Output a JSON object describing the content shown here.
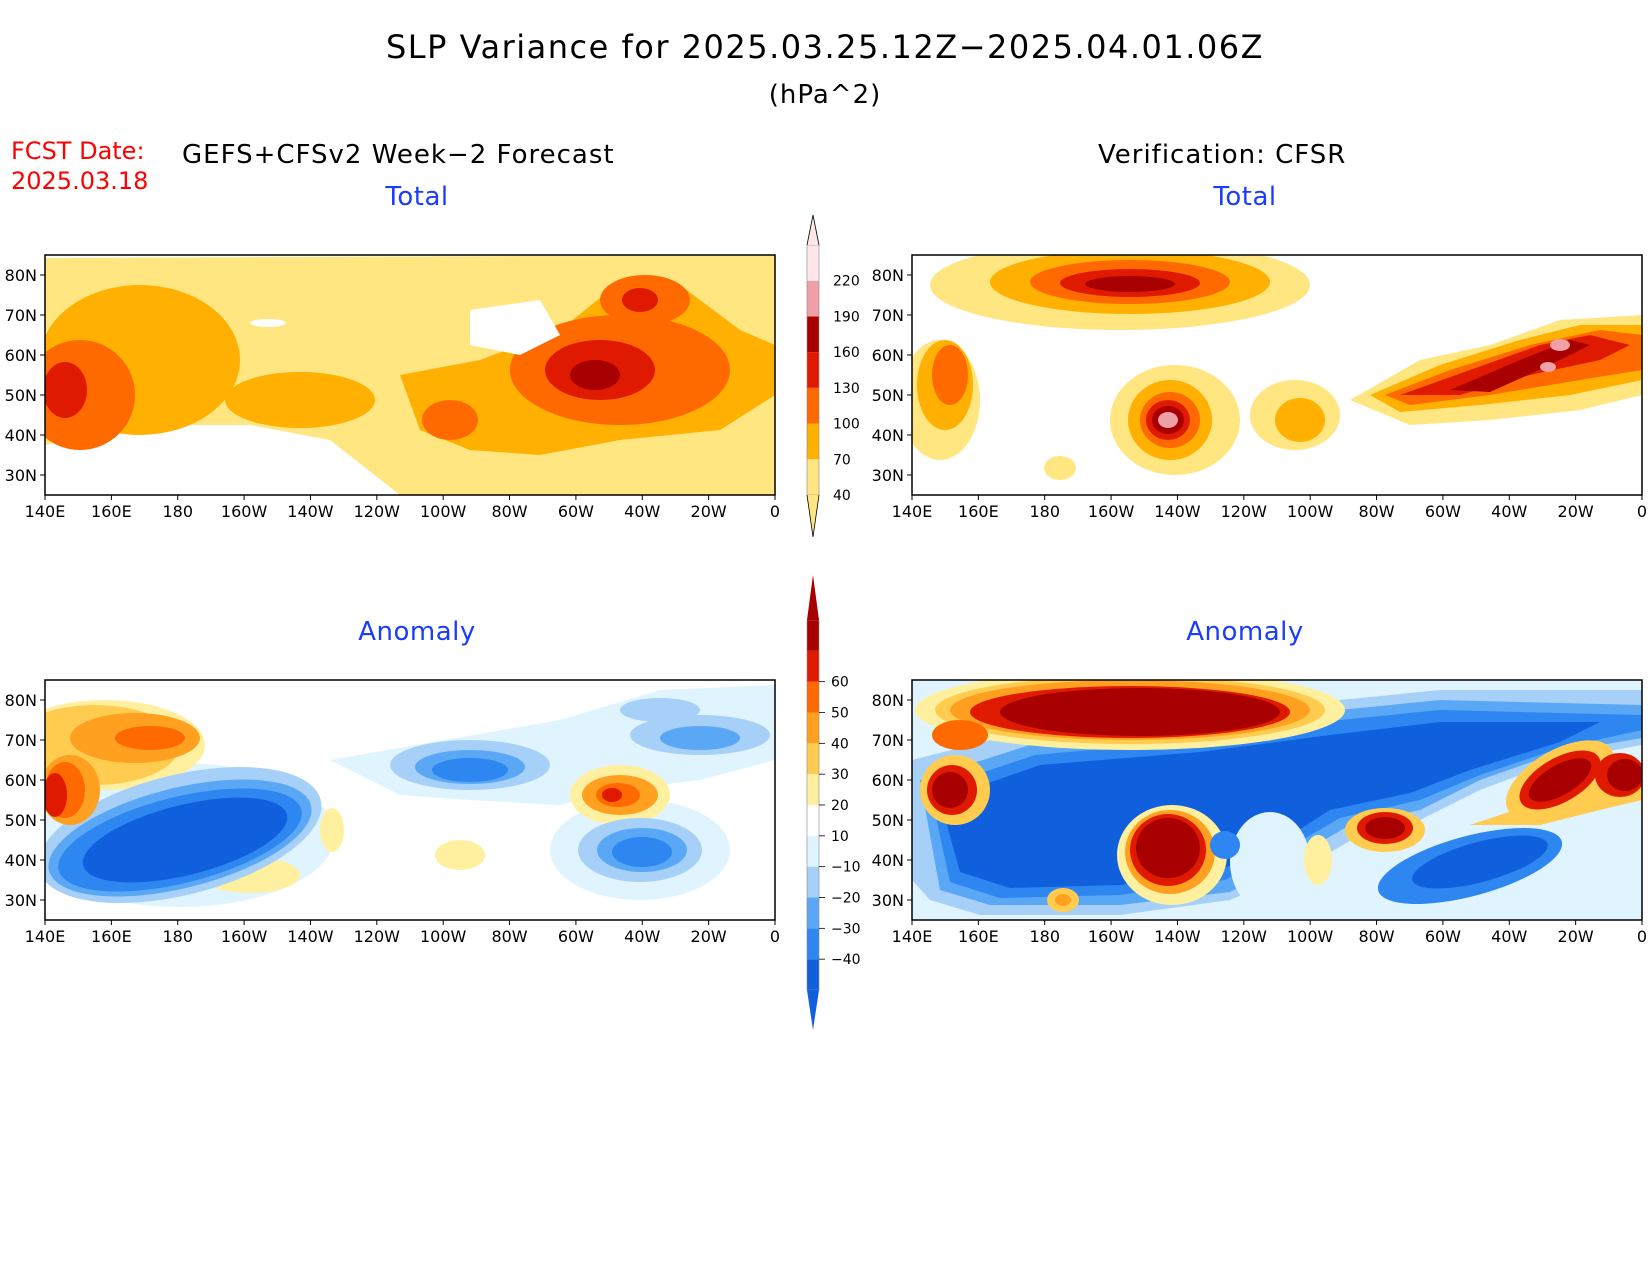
{
  "title": "SLP Variance for 2025.03.25.12Z−2025.04.01.06Z",
  "units": "(hPa^2)",
  "fcst": {
    "label": "FCST Date:",
    "date": "2025.03.18"
  },
  "left_header": "GEFS+CFSv2 Week−2 Forecast",
  "right_header": "Verification: CFSR",
  "panels": [
    {
      "id": "fcst-total",
      "title": "Total"
    },
    {
      "id": "verif-total",
      "title": "Total"
    },
    {
      "id": "fcst-anomaly",
      "title": "Anomaly"
    },
    {
      "id": "verif-anomaly",
      "title": "Anomaly"
    }
  ],
  "lat_ticks": [
    "30N",
    "40N",
    "50N",
    "60N",
    "70N",
    "80N"
  ],
  "lon_ticks": [
    "140E",
    "160E",
    "180",
    "160W",
    "140W",
    "120W",
    "100W",
    "80W",
    "60W",
    "40W",
    "20W",
    "0"
  ],
  "total_colorbar": {
    "labels": [
      "40",
      "70",
      "100",
      "130",
      "160",
      "190",
      "220"
    ],
    "colors": [
      "#ffe680",
      "#ffb000",
      "#ff6a00",
      "#e01a00",
      "#a80000",
      "#f0a0a8",
      "#ffe6ea"
    ]
  },
  "anomaly_colorbar": {
    "labels": [
      "−40",
      "−30",
      "−20",
      "−10",
      "10",
      "20",
      "30",
      "40",
      "50",
      "60"
    ],
    "colors": [
      "#1060dd",
      "#2e86f0",
      "#5aa8f5",
      "#a6d0f8",
      "#e0f4ff",
      "#ffffff",
      "#fff0a0",
      "#ffcc50",
      "#ffa020",
      "#ff6a00",
      "#e01a00",
      "#a80000"
    ]
  }
}
